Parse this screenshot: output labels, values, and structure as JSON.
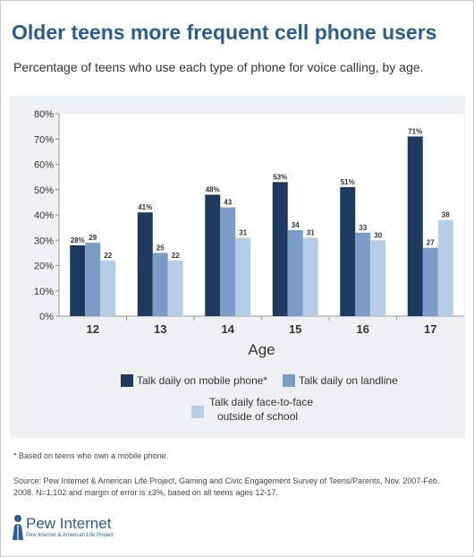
{
  "title": "Older teens more frequent cell phone users",
  "subtitle": "Percentage of teens who use each type of phone for voice calling, by age.",
  "chart_data": {
    "type": "bar",
    "xlabel": "Age",
    "categories": [
      "12",
      "13",
      "14",
      "15",
      "16",
      "17"
    ],
    "ylim": [
      0,
      80
    ],
    "y_ticks": [
      "0%",
      "10%",
      "20%",
      "30%",
      "40%",
      "50%",
      "60%",
      "70%",
      "80%"
    ],
    "grid": false,
    "series": [
      {
        "name": "Talk daily on mobile phone*",
        "color": "#1f3a5f",
        "values": [
          28,
          41,
          48,
          53,
          51,
          71
        ],
        "labels": [
          "28%",
          "41%",
          "48%",
          "53%",
          "51%",
          "71%"
        ]
      },
      {
        "name": "Talk daily on landline",
        "color": "#7b9cc7",
        "values": [
          29,
          25,
          43,
          34,
          33,
          27
        ],
        "labels": [
          "29",
          "25",
          "43",
          "34",
          "33",
          "27"
        ]
      },
      {
        "name": "Talk daily face-to-face outside of school",
        "color": "#b7cde5",
        "values": [
          22,
          22,
          31,
          31,
          30,
          38
        ],
        "labels": [
          "22",
          "22",
          "31",
          "31",
          "30",
          "38"
        ]
      }
    ]
  },
  "legend": {
    "mobile": "Talk daily on mobile phone*",
    "landline": "Talk daily on landline",
    "face_line1": "Talk daily face-to-face",
    "face_line2": "outside of school"
  },
  "footnote": "* Based on teens who own a mobile phone.",
  "source": "Source: Pew Internet & American Life Project, Gaming and Civic Engagement Survey of Teens/Parents, Nov. 2007-Feb. 2008. N=1,102 and margin of error is ±3%, based on all teens ages 12-17.",
  "logo": {
    "name": "Pew Internet",
    "tagline": "Pew Internet & American Life Project"
  }
}
